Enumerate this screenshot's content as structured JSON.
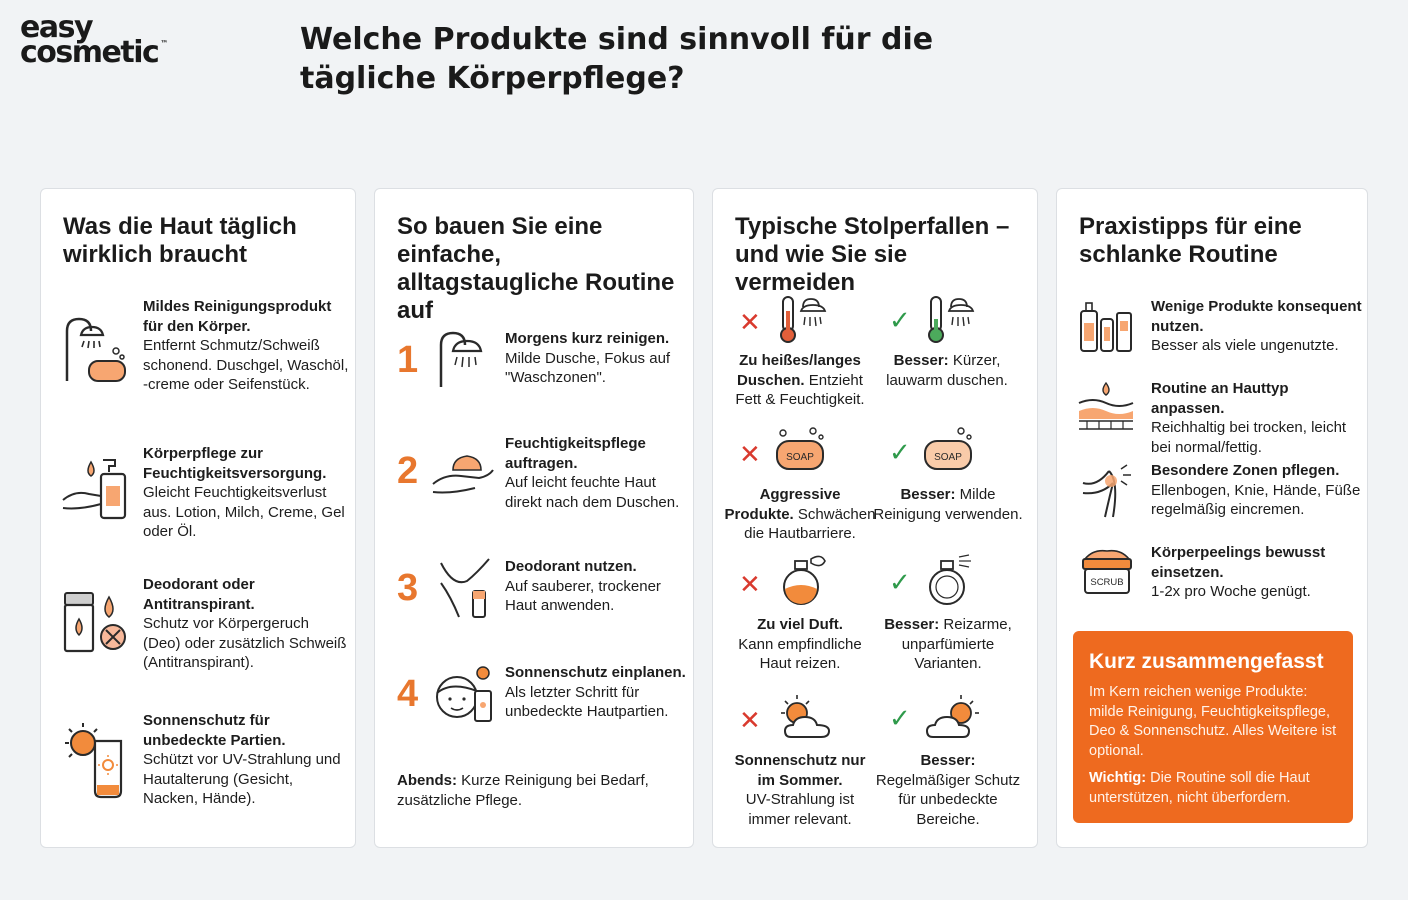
{
  "brand": {
    "line1": "easy",
    "line2": "cosmetic",
    "tm": "™"
  },
  "title": "Welche Produkte sind sinnvoll für die tägliche Körperpflege?",
  "col1": {
    "heading": "Was die Haut täglich wirklich braucht",
    "items": [
      {
        "bold": "Mildes Reinigungsprodukt für den Körper.",
        "text": "Entfernt Schmutz/Schweiß schonend. Duschgel, Waschöl, -creme oder Seifenstück.",
        "icon": "shower-soap-icon"
      },
      {
        "bold": "Körperpflege zur Feuchtigkeitsversorgung.",
        "text": "Gleicht Feuchtigkeitsverlust aus. Lotion, Milch, Creme, Gel oder Öl.",
        "icon": "lotion-hand-icon"
      },
      {
        "bold": "Deodorant oder Antitranspirant.",
        "text": "Schutz vor Körpergeruch (Deo) oder zusätzlich Schweiß (Antitranspirant).",
        "icon": "deodorant-icon"
      },
      {
        "bold": "Sonnenschutz für unbedeckte Partien.",
        "text": "Schützt vor UV-Strahlung und Hautalterung (Gesicht, Nacken, Hände).",
        "icon": "sunscreen-icon"
      }
    ]
  },
  "col2": {
    "heading": "So bauen Sie eine einfache, alltagstaugliche Routine auf",
    "steps": [
      {
        "num": "1",
        "bold": "Morgens kurz reinigen.",
        "text": "Milde Dusche, Fokus auf \"Waschzonen\".",
        "icon": "shower-icon"
      },
      {
        "num": "2",
        "bold": "Feuchtigkeitspflege auftragen.",
        "text": "Auf leicht feuchte Haut direkt nach dem Duschen.",
        "icon": "cream-hand-icon"
      },
      {
        "num": "3",
        "bold": "Deodorant nutzen.",
        "text": "Auf sauberer, trockener Haut anwenden.",
        "icon": "armpit-icon"
      },
      {
        "num": "4",
        "bold": "Sonnenschutz einplanen.",
        "text": "Als letzter Schritt für unbedeckte Hautpartien.",
        "icon": "face-sun-icon"
      }
    ],
    "evening_bold": "Abends:",
    "evening_text": "Kurze Reinigung bei Bedarf, zusätzliche Pflege."
  },
  "col3": {
    "heading": "Typische Stolperfallen – und wie Sie sie vermeiden",
    "pairs": [
      {
        "bad_bold": "Zu heißes/langes Duschen.",
        "bad_text": "Entzieht Fett & Feuchtigkeit.",
        "good_bold": "Besser:",
        "good_text": "Kürzer, lauwarm duschen."
      },
      {
        "bad_bold": "Aggressive Produkte.",
        "bad_text": "Schwächen die Hautbarriere.",
        "good_bold": "Besser:",
        "good_text": "Milde Reinigung verwenden."
      },
      {
        "bad_bold": "Zu viel Duft.",
        "bad_text": "Kann empfindliche Haut reizen.",
        "good_bold": "Besser:",
        "good_text": "Reizarme, unparfümierte Varianten."
      },
      {
        "bad_bold": "Sonnenschutz nur im Sommer.",
        "bad_text": "UV-Strahlung ist immer relevant.",
        "good_bold": "Besser:",
        "good_text": "Regelmäßiger Schutz für unbedeckte Bereiche."
      }
    ],
    "soap_label": "SOAP",
    "mark_bad": "✕",
    "mark_good": "✓"
  },
  "col4": {
    "heading": "Praxistipps für eine schlanke Routine",
    "tips": [
      {
        "bold": "Wenige Produkte konsequent nutzen.",
        "text": "Besser als viele ungenutzte.",
        "icon": "bottles-icon"
      },
      {
        "bold": "Routine an Hauttyp anpassen.",
        "text": "Reichhaltig bei trocken, leicht bei normal/fettig.",
        "icon": "skin-layers-icon"
      },
      {
        "bold": "Besondere Zonen pflegen.",
        "text": "Ellenbogen, Knie, Hände, Füße regelmäßig eincremen.",
        "icon": "elbow-icon"
      },
      {
        "bold": "Körperpeelings bewusst einsetzen.",
        "text": "1-2x pro Woche genügt.",
        "icon": "scrub-jar-icon"
      }
    ],
    "scrub_label": "SCRUB",
    "summary": {
      "heading": "Kurz zusammengefasst",
      "p1": "Im Kern reichen wenige Produkte: milde Reinigung, Feuchtigkeitspflege, Deo & Sonnenschutz. Alles Weitere ist optional.",
      "p2_bold": "Wichtig:",
      "p2": "Die Routine soll die Haut unterstützen, nicht überfordern."
    }
  },
  "colors": {
    "accent": "#ee6a1f",
    "bad": "#d93a2e",
    "good": "#2f9a4b"
  }
}
